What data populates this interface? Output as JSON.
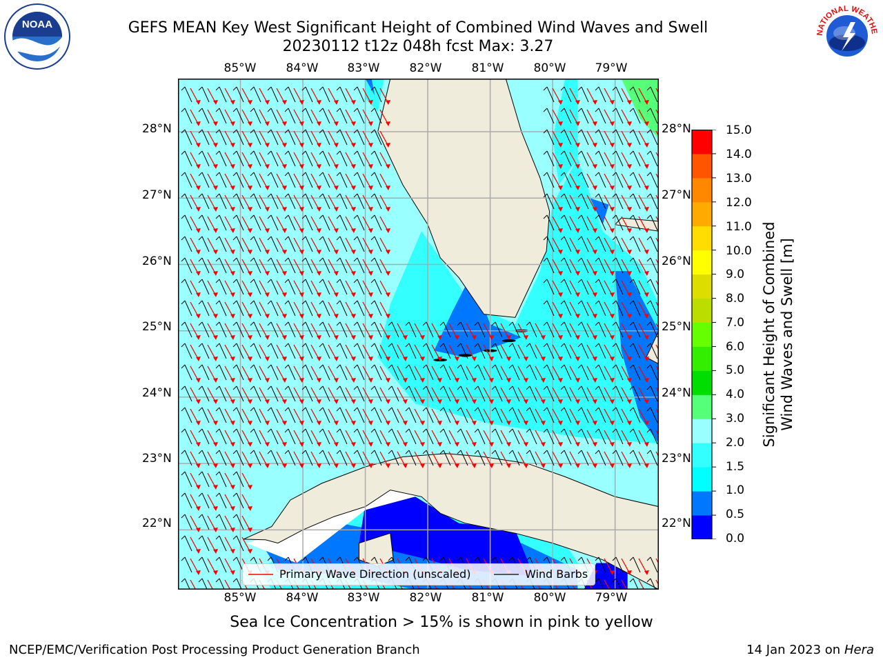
{
  "title": {
    "line1": "GEFS MEAN Key West Significant Height of Combined Wind Waves and Swell",
    "line2": "20230112 t12z 048h fcst   Max: 3.27"
  },
  "logos": {
    "left": "NOAA",
    "right": "NATIONAL WEATHER SERVICE"
  },
  "map": {
    "lon_ticks": [
      "85°W",
      "84°W",
      "83°W",
      "82°W",
      "81°W",
      "80°W",
      "79°W"
    ],
    "lat_ticks": [
      "28°N",
      "27°N",
      "26°N",
      "25°N",
      "24°N",
      "23°N",
      "22°N"
    ],
    "extent": {
      "lon": [
        -86.0,
        -78.3
      ],
      "lat": [
        21.1,
        28.8
      ]
    },
    "gridlines": true,
    "colors": {
      "land": "#efecdc",
      "ocean_low": "#99ffff",
      "ocean_mid": "#33ffff",
      "ocean_shallow": "#0077ff",
      "ocean_deep": "#0000ff",
      "north_green": "#55ff77"
    }
  },
  "legend": {
    "wave_label": "Primary Wave Direction (unscaled)",
    "barb_label": "Wind Barbs",
    "wave_color": "#ff0000",
    "barb_color": "#000000"
  },
  "colorbar": {
    "label_line1": "Significant Height of Combined",
    "label_line2": "Wind Waves and Swell [m]",
    "ticks": [
      "15.0",
      "14.0",
      "13.0",
      "12.0",
      "11.0",
      "10.0",
      "9.0",
      "8.0",
      "7.0",
      "6.0",
      "5.0",
      "4.0",
      "3.0",
      "2.0",
      "1.5",
      "1.0",
      "0.5",
      "0.0"
    ],
    "colors": [
      "#0000ff",
      "#0077ff",
      "#00ffff",
      "#33ffff",
      "#99ffff",
      "#55ff77",
      "#00dd00",
      "#33ee00",
      "#66ff00",
      "#bbdd00",
      "#dddd00",
      "#ffff00",
      "#ffdd00",
      "#ffaa00",
      "#ff8800",
      "#ff5500",
      "#ff0000"
    ]
  },
  "sea_ice_note": "Sea Ice Concentration > 15% is shown in pink to yellow",
  "footer": {
    "left": "NCEP/EMC/Verification Post Processing Product Generation Branch",
    "date": "14 Jan 2023 on ",
    "host": "Hera"
  }
}
